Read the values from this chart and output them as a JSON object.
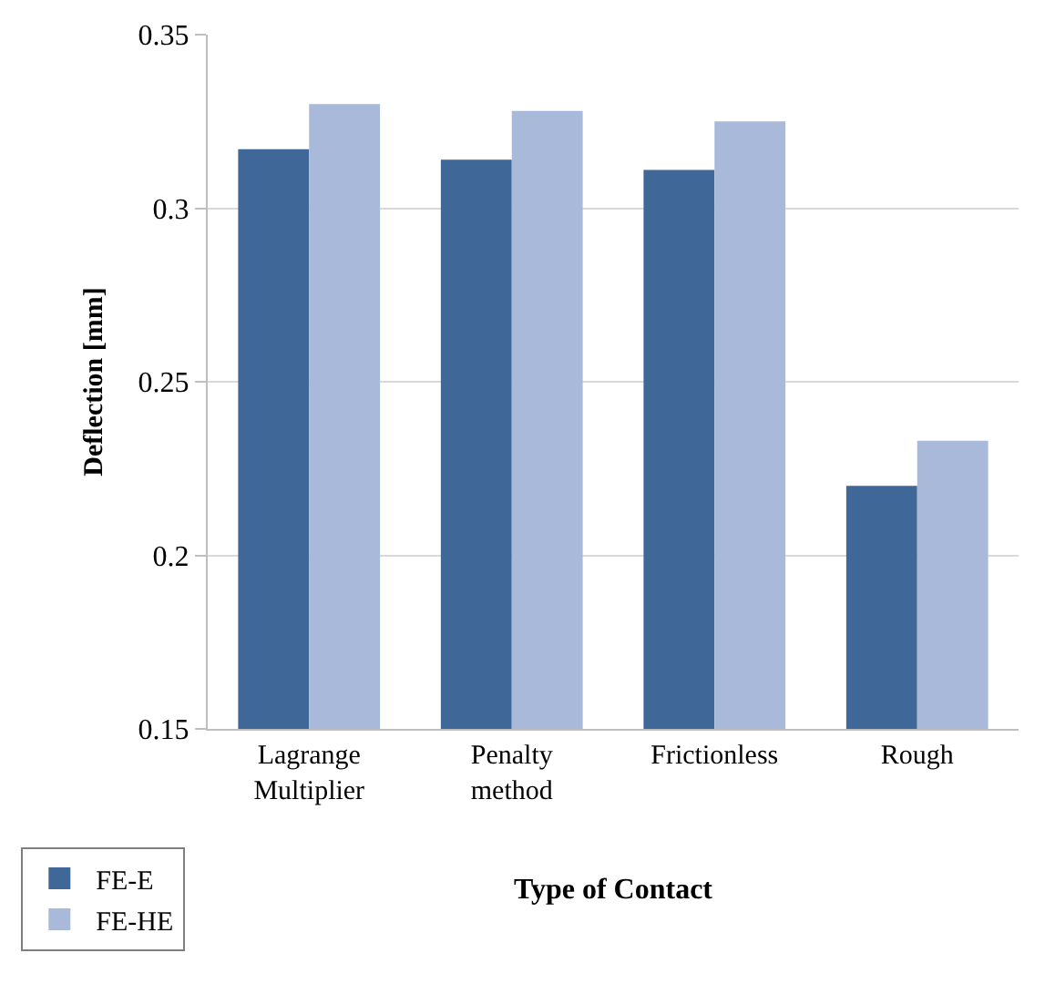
{
  "chart_data": {
    "type": "bar",
    "xlabel": "Type of Contact",
    "ylabel": "Deflection [mm]",
    "categories": [
      "Lagrange Multiplier",
      "Penalty method",
      "Frictionless",
      "Rough"
    ],
    "series": [
      {
        "name": "FE-E",
        "color": "#3f6899",
        "values": [
          0.317,
          0.314,
          0.311,
          0.22
        ]
      },
      {
        "name": "FE-HE",
        "color": "#a9b9d9",
        "values": [
          0.33,
          0.328,
          0.325,
          0.233
        ]
      }
    ],
    "ylim": [
      0.15,
      0.35
    ],
    "yticks": [
      0.15,
      0.2,
      0.25,
      0.3,
      0.35
    ],
    "grid": "y",
    "legend": "bottom left"
  }
}
